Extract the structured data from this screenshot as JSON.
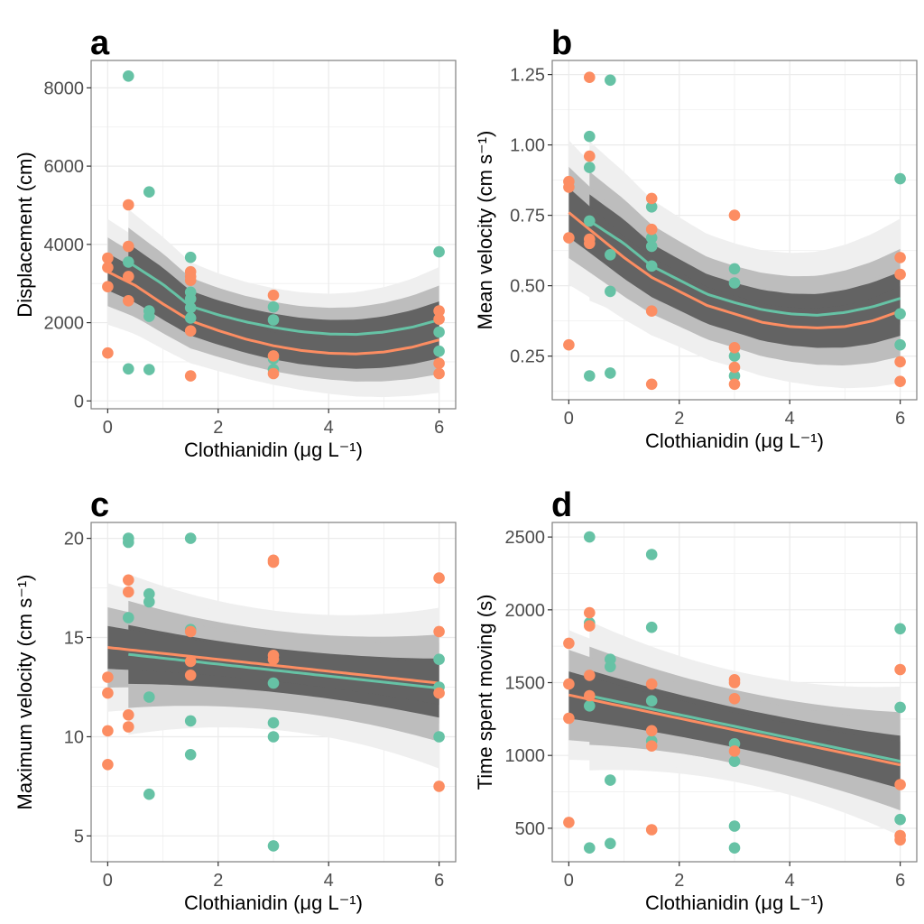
{
  "figure": {
    "colors": {
      "teal": "#66C2A5",
      "orange": "#FC8D62",
      "band_inner": "#636363",
      "band_middle": "#BDBDBD",
      "band_outer": "#EFEFEF",
      "grid": "#EBEBEB",
      "frame": "#7F7F7F"
    }
  },
  "chart_data": [
    {
      "panel": "a",
      "type": "scatter",
      "title": "",
      "xlabel": "Clothianidin (μg  L⁻¹)",
      "ylabel": "Displacement (cm)",
      "xlim": [
        -0.3,
        6.3
      ],
      "ylim": [
        -200,
        8700
      ],
      "xticks": [
        0,
        2,
        4,
        6
      ],
      "xtick_labels": [
        "0",
        "2",
        "4",
        "6"
      ],
      "yticks": [
        0,
        2000,
        4000,
        6000,
        8000
      ],
      "ytick_labels": [
        "0",
        "2000",
        "4000",
        "6000",
        "8000"
      ],
      "grid": true,
      "series": [
        {
          "name": "teal",
          "color": "#66C2A5",
          "points": [
            [
              0.375,
              8300
            ],
            [
              0.375,
              3550
            ],
            [
              0.375,
              820
            ],
            [
              0.75,
              5340
            ],
            [
              0.75,
              2300
            ],
            [
              0.75,
              2160
            ],
            [
              0.75,
              800
            ],
            [
              1.5,
              3670
            ],
            [
              1.5,
              2780
            ],
            [
              1.5,
              2610
            ],
            [
              1.5,
              2380
            ],
            [
              1.5,
              2120
            ],
            [
              3,
              2400
            ],
            [
              3,
              2070
            ],
            [
              3,
              1080
            ],
            [
              3,
              800
            ],
            [
              6,
              3810
            ],
            [
              6,
              1760
            ],
            [
              6,
              1270
            ]
          ],
          "fit": {
            "x": [
              0.375,
              1,
              1.5,
              2,
              2.5,
              3,
              3.5,
              4,
              4.5,
              5,
              5.5,
              6
            ],
            "y": [
              3550,
              2980,
              2420,
              2200,
              2020,
              1880,
              1770,
              1710,
              1700,
              1760,
              1880,
              2070
            ],
            "inner": 350,
            "middle": 650,
            "outer": 1000
          }
        },
        {
          "name": "orange",
          "color": "#FC8D62",
          "points": [
            [
              0,
              3650
            ],
            [
              0,
              3410
            ],
            [
              0,
              2920
            ],
            [
              0,
              1225
            ],
            [
              0.375,
              5010
            ],
            [
              0.375,
              3950
            ],
            [
              0.375,
              3180
            ],
            [
              0.375,
              2560
            ],
            [
              1.5,
              3300
            ],
            [
              1.5,
              3180
            ],
            [
              1.5,
              3080
            ],
            [
              1.5,
              1790
            ],
            [
              1.5,
              640
            ],
            [
              3,
              2700
            ],
            [
              3,
              1150
            ],
            [
              3,
              700
            ]
          ],
          "fit": {
            "x": [
              0,
              0.5,
              1,
              1.5,
              2,
              2.5,
              3,
              3.5,
              4,
              4.5,
              5,
              5.5,
              6
            ],
            "y": [
              3300,
              2950,
              2480,
              2050,
              1800,
              1580,
              1410,
              1290,
              1220,
              1200,
              1250,
              1370,
              1560
            ],
            "inner": 350,
            "middle": 650,
            "outer": 1000
          }
        },
        {
          "name": "orange-extra",
          "color": "#FC8D62",
          "points": [
            [
              6,
              2300
            ],
            [
              6,
              2090
            ],
            [
              6,
              960
            ],
            [
              6,
              700
            ]
          ]
        }
      ]
    },
    {
      "panel": "b",
      "type": "scatter",
      "title": "",
      "xlabel": "Clothianidin (μg  L⁻¹)",
      "ylabel": "Mean velocity (cm  s⁻¹)",
      "xlim": [
        -0.3,
        6.3
      ],
      "ylim": [
        0.095,
        1.3
      ],
      "xticks": [
        0,
        2,
        4,
        6
      ],
      "xtick_labels": [
        "0",
        "2",
        "4",
        "6"
      ],
      "yticks": [
        0.25,
        0.5,
        0.75,
        1.0,
        1.25
      ],
      "ytick_labels": [
        "0.25",
        "0.50",
        "0.75",
        "1.00",
        "1.25"
      ],
      "grid": true,
      "series": [
        {
          "name": "teal",
          "color": "#66C2A5",
          "points": [
            [
              0.375,
              1.03
            ],
            [
              0.375,
              0.92
            ],
            [
              0.375,
              0.73
            ],
            [
              0.375,
              0.18
            ],
            [
              0.75,
              1.23
            ],
            [
              0.75,
              0.61
            ],
            [
              0.75,
              0.48
            ],
            [
              0.75,
              0.19
            ],
            [
              1.5,
              0.78
            ],
            [
              1.5,
              0.67
            ],
            [
              1.5,
              0.64
            ],
            [
              1.5,
              0.57
            ],
            [
              3,
              0.56
            ],
            [
              3,
              0.51
            ],
            [
              3,
              0.25
            ],
            [
              3,
              0.18
            ],
            [
              6,
              0.88
            ],
            [
              6,
              0.4
            ],
            [
              6,
              0.29
            ]
          ],
          "fit": {
            "x": [
              0.375,
              1,
              1.5,
              2,
              2.5,
              3,
              3.5,
              4,
              4.5,
              5,
              5.5,
              6
            ],
            "y": [
              0.73,
              0.65,
              0.57,
              0.52,
              0.47,
              0.44,
              0.415,
              0.4,
              0.395,
              0.405,
              0.425,
              0.455
            ],
            "inner": 0.07,
            "middle": 0.13,
            "outer": 0.21
          }
        },
        {
          "name": "orange",
          "color": "#FC8D62",
          "points": [
            [
              0,
              0.87
            ],
            [
              0,
              0.85
            ],
            [
              0,
              0.67
            ],
            [
              0,
              0.29
            ],
            [
              0.375,
              1.24
            ],
            [
              0.375,
              0.96
            ],
            [
              0.375,
              0.665
            ],
            [
              0.375,
              0.65
            ],
            [
              1.5,
              0.81
            ],
            [
              1.5,
              0.7
            ],
            [
              1.5,
              0.41
            ],
            [
              1.5,
              0.15
            ],
            [
              3,
              0.75
            ],
            [
              3,
              0.28
            ],
            [
              3,
              0.21
            ],
            [
              3,
              0.15
            ],
            [
              6,
              0.6
            ],
            [
              6,
              0.54
            ],
            [
              6,
              0.23
            ],
            [
              6,
              0.16
            ]
          ],
          "fit": {
            "x": [
              0,
              0.5,
              1,
              1.5,
              2,
              2.5,
              3,
              3.5,
              4,
              4.5,
              5,
              5.5,
              6
            ],
            "y": [
              0.76,
              0.68,
              0.6,
              0.53,
              0.48,
              0.43,
              0.4,
              0.37,
              0.355,
              0.35,
              0.355,
              0.375,
              0.41
            ],
            "inner": 0.065,
            "middle": 0.12,
            "outer": 0.19
          }
        }
      ]
    },
    {
      "panel": "c",
      "type": "scatter",
      "title": "",
      "xlabel": "Clothianidin (μg  L⁻¹)",
      "ylabel": "Maximum velocity (cm s⁻¹)",
      "xlim": [
        -0.3,
        6.3
      ],
      "ylim": [
        3.7,
        20.8
      ],
      "xticks": [
        0,
        2,
        4,
        6
      ],
      "xtick_labels": [
        "0",
        "2",
        "4",
        "6"
      ],
      "yticks": [
        5,
        10,
        15,
        20
      ],
      "ytick_labels": [
        "5",
        "10",
        "15",
        "20"
      ],
      "grid": true,
      "series": [
        {
          "name": "teal",
          "color": "#66C2A5",
          "points": [
            [
              0.375,
              20.0
            ],
            [
              0.375,
              19.8
            ],
            [
              0.375,
              16.0
            ],
            [
              0.75,
              17.2
            ],
            [
              0.75,
              16.8
            ],
            [
              0.75,
              12.0
            ],
            [
              0.75,
              7.1
            ],
            [
              1.5,
              20.0
            ],
            [
              1.5,
              15.4
            ],
            [
              1.5,
              10.8
            ],
            [
              1.5,
              9.1
            ],
            [
              3,
              12.7
            ],
            [
              3,
              10.7
            ],
            [
              3,
              10.0
            ],
            [
              3,
              4.5
            ],
            [
              6,
              13.9
            ],
            [
              6,
              12.5
            ],
            [
              6,
              10.0
            ]
          ],
          "fit": {
            "x": [
              0.375,
              6
            ],
            "y": [
              14.15,
              12.45
            ],
            "inner": 1.1,
            "middle": 2.0,
            "outer": 3.0
          }
        },
        {
          "name": "orange",
          "color": "#FC8D62",
          "points": [
            [
              0,
              13.0
            ],
            [
              0,
              12.2
            ],
            [
              0,
              10.3
            ],
            [
              0,
              8.6
            ],
            [
              0.375,
              17.9
            ],
            [
              0.375,
              17.3
            ],
            [
              0.375,
              11.1
            ],
            [
              0.375,
              10.5
            ],
            [
              1.5,
              15.3
            ],
            [
              1.5,
              13.8
            ],
            [
              1.5,
              13.1
            ],
            [
              3,
              18.9
            ],
            [
              3,
              18.8
            ],
            [
              3,
              14.1
            ],
            [
              3,
              13.9
            ],
            [
              6,
              18.0
            ],
            [
              6,
              15.3
            ],
            [
              6,
              12.2
            ],
            [
              6,
              7.5
            ]
          ],
          "fit": {
            "x": [
              0,
              6
            ],
            "y": [
              14.5,
              12.7
            ],
            "inner": 0.8,
            "middle": 1.5,
            "outer": 2.4
          }
        }
      ]
    },
    {
      "panel": "d",
      "type": "scatter",
      "title": "",
      "xlabel": "Clothianidin (μg  L⁻¹)",
      "ylabel": "Time spent moving (s)",
      "xlim": [
        -0.3,
        6.3
      ],
      "ylim": [
        270,
        2600
      ],
      "xticks": [
        0,
        2,
        4,
        6
      ],
      "xtick_labels": [
        "0",
        "2",
        "4",
        "6"
      ],
      "yticks": [
        500,
        1000,
        1500,
        2000,
        2500
      ],
      "ytick_labels": [
        "500",
        "1000",
        "1500",
        "2000",
        "2500"
      ],
      "grid": true,
      "series": [
        {
          "name": "teal",
          "color": "#66C2A5",
          "points": [
            [
              0.375,
              2500
            ],
            [
              0.375,
              1910
            ],
            [
              0.375,
              1340
            ],
            [
              0.375,
              365
            ],
            [
              0.75,
              1660
            ],
            [
              0.75,
              1610
            ],
            [
              0.75,
              830
            ],
            [
              0.75,
              395
            ],
            [
              1.5,
              2380
            ],
            [
              1.5,
              1880
            ],
            [
              1.5,
              1375
            ],
            [
              1.5,
              1100
            ],
            [
              3,
              1080
            ],
            [
              3,
              960
            ],
            [
              3,
              515
            ],
            [
              3,
              365
            ],
            [
              6,
              1870
            ],
            [
              6,
              1330
            ],
            [
              6,
              560
            ]
          ],
          "fit": {
            "x": [
              0.375,
              6
            ],
            "y": [
              1410,
              960
            ],
            "inner": 130,
            "middle": 250,
            "outer": 380
          }
        },
        {
          "name": "orange",
          "color": "#FC8D62",
          "points": [
            [
              0,
              1770
            ],
            [
              0,
              1490
            ],
            [
              0,
              1255
            ],
            [
              0,
              540
            ],
            [
              0.375,
              1980
            ],
            [
              0.375,
              1890
            ],
            [
              0.375,
              1550
            ],
            [
              0.375,
              1410
            ],
            [
              1.5,
              1490
            ],
            [
              1.5,
              1170
            ],
            [
              1.5,
              1065
            ],
            [
              1.5,
              490
            ],
            [
              3,
              1520
            ],
            [
              3,
              1500
            ],
            [
              3,
              1390
            ],
            [
              3,
              1030
            ],
            [
              6,
              1590
            ],
            [
              6,
              800
            ],
            [
              6,
              450
            ],
            [
              6,
              420
            ]
          ],
          "fit": {
            "x": [
              0,
              6
            ],
            "y": [
              1415,
              935
            ],
            "inner": 120,
            "middle": 230,
            "outer": 330
          }
        }
      ]
    }
  ],
  "panels": {
    "a": {
      "tag": "a"
    },
    "b": {
      "tag": "b"
    },
    "c": {
      "tag": "c"
    },
    "d": {
      "tag": "d"
    }
  }
}
